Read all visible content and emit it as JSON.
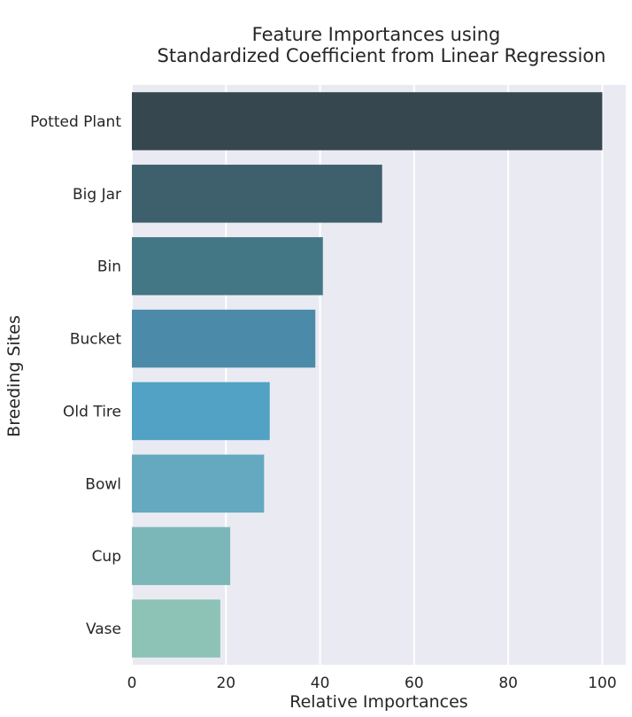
{
  "chart_data": {
    "type": "bar",
    "orientation": "horizontal",
    "title": [
      "Feature Importances using",
      "Standardized Coefficient from Linear Regression"
    ],
    "xlabel": "Relative Importances",
    "ylabel": "Breeding Sites",
    "xlim": [
      0,
      105
    ],
    "xticks": [
      0,
      20,
      40,
      60,
      80,
      100
    ],
    "grid": true,
    "categories": [
      "Potted Plant",
      "Big Jar",
      "Bin",
      "Bucket",
      "Old Tire",
      "Bowl",
      "Cup",
      "Vase"
    ],
    "values": [
      100,
      53.2,
      40.6,
      39.0,
      29.3,
      28.1,
      20.9,
      18.8
    ],
    "colors": [
      "#37474f",
      "#3e5f6c",
      "#447786",
      "#4b8ba9",
      "#51a2c4",
      "#64a9bf",
      "#7bb7b8",
      "#8dc3b6"
    ],
    "background": "#eaeaf2"
  }
}
